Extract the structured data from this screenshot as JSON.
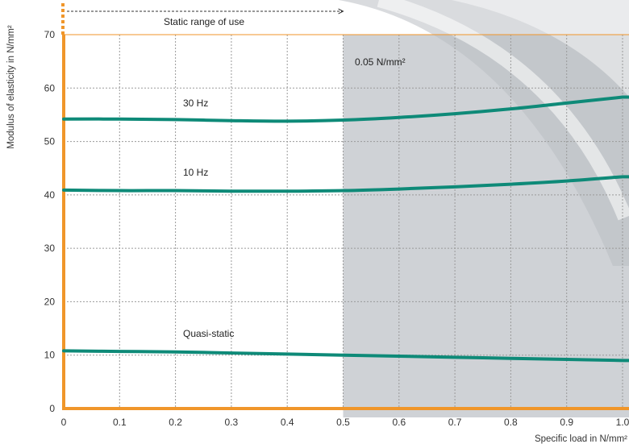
{
  "chart_data": {
    "type": "line",
    "xlabel": "Specific load in N/mm²",
    "ylabel": "Modulus of elasticity in N/mm²",
    "xlim": [
      0,
      1.0
    ],
    "ylim": [
      0,
      70
    ],
    "grid": true,
    "x_ticks": [
      0,
      0.1,
      0.2,
      0.3,
      0.4,
      0.5,
      0.6,
      0.7,
      0.8,
      0.9,
      1.0
    ],
    "x_tick_labels": [
      "0",
      "0.1",
      "0.2",
      "0.3",
      "0.4",
      "0.5",
      "0.6",
      "0.7",
      "0.8",
      "0.9",
      "1.0"
    ],
    "y_ticks": [
      0,
      10,
      20,
      30,
      40,
      50,
      60,
      70
    ],
    "y_tick_labels": [
      "0",
      "10",
      "20",
      "30",
      "40",
      "50",
      "60",
      "70"
    ],
    "regions": [
      {
        "label": "Static range of use",
        "x_start": 0,
        "x_end": 0.5
      },
      {
        "label": "0.05 N/mm²",
        "x_start": 0.5,
        "x_end": 1.0
      }
    ],
    "series": [
      {
        "name": "30 Hz",
        "x": [
          0,
          0.1,
          0.2,
          0.3,
          0.4,
          0.5,
          0.6,
          0.7,
          0.8,
          0.9,
          1.0
        ],
        "values": [
          54.2,
          54.2,
          54.1,
          53.9,
          53.8,
          54.0,
          54.5,
          55.2,
          56.1,
          57.2,
          58.3
        ]
      },
      {
        "name": "10 Hz",
        "x": [
          0,
          0.1,
          0.2,
          0.3,
          0.4,
          0.5,
          0.6,
          0.7,
          0.8,
          0.9,
          1.0
        ],
        "values": [
          40.9,
          40.8,
          40.8,
          40.7,
          40.7,
          40.8,
          41.1,
          41.5,
          42.0,
          42.6,
          43.4
        ]
      },
      {
        "name": "Quasi-static",
        "x": [
          0,
          0.1,
          0.2,
          0.3,
          0.4,
          0.5,
          0.6,
          0.7,
          0.8,
          0.9,
          1.0
        ],
        "values": [
          10.8,
          10.7,
          10.6,
          10.4,
          10.2,
          10.0,
          9.8,
          9.6,
          9.4,
          9.2,
          9.0
        ]
      }
    ],
    "colors": {
      "line": "#0e8a78",
      "axis": "#f0962a",
      "shade": "#cfd2d6",
      "swoosh": "#b9bdc2"
    }
  }
}
